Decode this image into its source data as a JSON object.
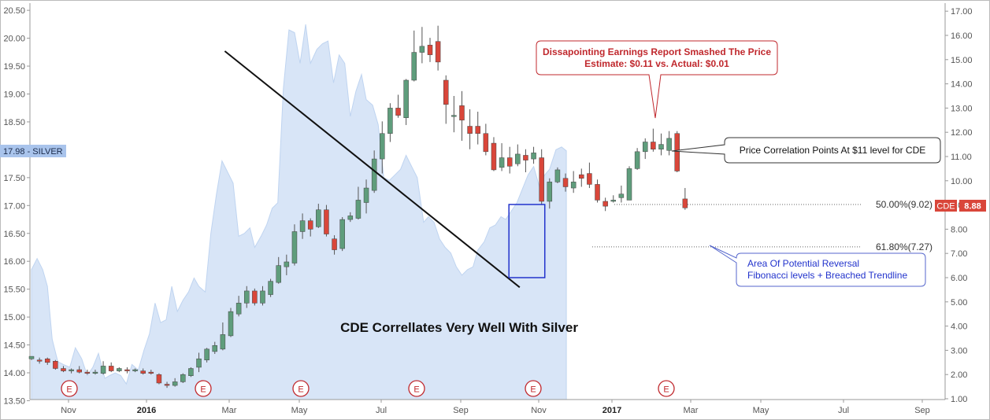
{
  "chart_data": {
    "type": "candlestick",
    "title": "CDE Correllates Very Well With Silver",
    "left_axis": {
      "label": "SILVER",
      "range": [
        13.5,
        20.5
      ],
      "ticks": [
        "13.50",
        "14.00",
        "14.50",
        "15.00",
        "15.50",
        "16.00",
        "16.50",
        "17.00",
        "17.50",
        "18.00",
        "18.50",
        "19.00",
        "19.50",
        "20.00",
        "20.50"
      ]
    },
    "right_axis": {
      "range": [
        0.7,
        17.2
      ],
      "ticks": [
        "1.00",
        "2.00",
        "3.00",
        "4.00",
        "5.00",
        "6.00",
        "7.00",
        "8.00",
        "9.00",
        "10.00",
        "11.00",
        "12.00",
        "13.00",
        "14.00",
        "15.00",
        "16.00",
        "17.00"
      ]
    },
    "x_labels": [
      "Nov",
      "2016",
      "Mar",
      "May",
      "Jul",
      "Sep",
      "Nov",
      "2017",
      "Mar",
      "May",
      "Jul",
      "Sep"
    ],
    "x_label_bold": [
      "2016",
      "2017"
    ],
    "silver_series": {
      "name": "SILVER",
      "last_value": "17.98",
      "color": "#d6e4f7",
      "t": [
        0,
        0.7,
        1.4,
        2,
        2.6,
        3.3,
        4,
        4.8,
        5.5,
        6.3,
        7,
        7.7,
        8.4,
        9.2,
        9.8,
        10.5,
        11.2,
        11.9,
        12.6,
        13.4,
        14.1,
        14.8,
        15.5,
        16.2,
        16.9,
        17.6,
        18.3,
        19,
        19.7,
        20.4,
        21,
        21.8,
        22.5,
        23.2,
        23.9,
        24.6,
        25.3,
        26,
        26.7,
        27.4,
        28,
        28.8,
        29.5,
        30.2,
        30.9,
        31.6,
        32.3,
        33,
        33.7,
        34.4,
        35,
        35.8,
        36.5,
        37.2,
        37.9,
        38.6,
        39.3,
        40,
        40.7,
        41.4,
        42,
        42.8,
        43.5,
        44.2,
        44.9,
        45.6,
        46.3,
        47,
        47.7,
        48.4,
        49.2,
        49.8,
        50.5,
        51.2,
        51.9,
        52.6,
        53.3,
        54,
        54.7,
        55.4,
        56,
        56.8,
        57.5,
        58.2,
        58.9,
        59.5,
        60.2,
        60.9,
        61.6,
        62.3,
        63,
        63.7,
        64.4,
        65,
        65.8,
        66.5,
        67.1
      ],
      "values": [
        15.85,
        16.05,
        15.85,
        15.55,
        14.6,
        14.2,
        14.15,
        14.1,
        14.45,
        14.25,
        13.95,
        14.1,
        14.35,
        13.9,
        13.95,
        14.0,
        13.95,
        13.8,
        14.15,
        14.05,
        14.4,
        14.7,
        15.25,
        14.9,
        14.95,
        15.55,
        15.1,
        15.3,
        15.45,
        15.7,
        15.55,
        15.45,
        16.5,
        17.2,
        17.8,
        17.6,
        17.4,
        16.45,
        16.5,
        16.6,
        16.25,
        16.45,
        16.65,
        16.95,
        17.05,
        19.1,
        20.15,
        20.1,
        19.55,
        20.25,
        19.55,
        19.8,
        19.9,
        19.95,
        19.2,
        19.7,
        19.55,
        18.6,
        19.05,
        19.35,
        18.9,
        18.8,
        18.45,
        17.5,
        17.45,
        17.55,
        17.65,
        17.9,
        17.7,
        17.5,
        16.7,
        16.8,
        16.7,
        16.4,
        16.25,
        16.15,
        15.9,
        15.75,
        15.85,
        15.9,
        16.2,
        16.35,
        16.6,
        16.65,
        16.8,
        16.75,
        16.9,
        17.05,
        17.3,
        17.55,
        17.7,
        17.35,
        17.55,
        17.65,
        18.0,
        18.05,
        17.98
      ]
    },
    "cde_series": {
      "name": "CDE",
      "last_value": "8.88",
      "up_color": "#5f9d7c",
      "down_color": "#d9463a",
      "candles": [
        [
          2.65,
          2.75,
          2.75,
          2.6
        ],
        [
          2.6,
          2.55,
          2.7,
          2.45
        ],
        [
          2.65,
          2.5,
          2.7,
          2.4
        ],
        [
          2.55,
          2.25,
          2.6,
          2.2
        ],
        [
          2.25,
          2.15,
          2.35,
          2.1
        ],
        [
          2.15,
          2.2,
          2.25,
          2.05
        ],
        [
          2.2,
          2.1,
          2.35,
          2.05
        ],
        [
          2.1,
          2.05,
          2.2,
          2.0
        ],
        [
          2.05,
          2.1,
          2.2,
          2.0
        ],
        [
          2.05,
          2.35,
          2.55,
          2.0
        ],
        [
          2.35,
          2.15,
          2.5,
          2.1
        ],
        [
          2.15,
          2.25,
          2.3,
          2.1
        ],
        [
          2.2,
          2.15,
          2.3,
          2.05
        ],
        [
          2.15,
          2.2,
          2.25,
          2.1
        ],
        [
          2.15,
          2.05,
          2.25,
          2.0
        ],
        [
          2.1,
          2.05,
          2.2,
          2.0
        ],
        [
          2.0,
          1.65,
          2.05,
          1.6
        ],
        [
          1.6,
          1.55,
          1.7,
          1.45
        ],
        [
          1.55,
          1.7,
          1.85,
          1.5
        ],
        [
          1.7,
          2.0,
          2.05,
          1.65
        ],
        [
          1.95,
          2.25,
          2.3,
          1.9
        ],
        [
          2.3,
          2.65,
          2.9,
          2.1
        ],
        [
          2.6,
          3.05,
          3.1,
          2.5
        ],
        [
          2.95,
          3.2,
          3.35,
          2.85
        ],
        [
          3.05,
          3.65,
          4.15,
          3.0
        ],
        [
          3.6,
          4.6,
          4.75,
          3.55
        ],
        [
          4.5,
          4.95,
          5.25,
          4.4
        ],
        [
          4.95,
          5.45,
          5.65,
          4.75
        ],
        [
          5.45,
          4.95,
          5.55,
          4.85
        ],
        [
          4.95,
          5.45,
          5.65,
          4.85
        ],
        [
          5.3,
          5.85,
          5.95,
          5.2
        ],
        [
          5.8,
          6.5,
          6.85,
          5.75
        ],
        [
          6.45,
          6.65,
          6.95,
          6.1
        ],
        [
          6.6,
          7.9,
          8.2,
          6.5
        ],
        [
          7.9,
          8.35,
          8.65,
          7.6
        ],
        [
          8.35,
          8.0,
          8.45,
          7.7
        ],
        [
          8.1,
          8.8,
          9.05,
          8.05
        ],
        [
          8.8,
          7.8,
          9.0,
          7.7
        ],
        [
          7.6,
          7.15,
          7.75,
          6.95
        ],
        [
          7.2,
          8.4,
          8.5,
          7.1
        ],
        [
          8.4,
          8.55,
          8.7,
          8.3
        ],
        [
          8.45,
          9.2,
          9.75,
          8.4
        ],
        [
          9.1,
          9.7,
          10.05,
          8.65
        ],
        [
          9.6,
          10.9,
          11.25,
          9.5
        ],
        [
          10.9,
          11.95,
          12.45,
          10.3
        ],
        [
          11.95,
          13.0,
          13.2,
          11.6
        ],
        [
          13.0,
          12.7,
          13.55,
          12.6
        ],
        [
          12.6,
          14.15,
          14.2,
          12.3
        ],
        [
          14.15,
          15.3,
          16.2,
          14.1
        ],
        [
          15.3,
          15.55,
          16.35,
          14.85
        ],
        [
          15.6,
          15.2,
          15.9,
          14.9
        ],
        [
          15.75,
          14.9,
          16.4,
          14.55
        ],
        [
          14.15,
          13.15,
          14.35,
          12.35
        ],
        [
          12.65,
          12.7,
          13.5,
          12.0
        ],
        [
          13.1,
          12.5,
          13.7,
          11.65
        ],
        [
          12.25,
          11.95,
          12.95,
          11.3
        ],
        [
          12.25,
          11.95,
          12.85,
          11.5
        ],
        [
          11.95,
          11.2,
          12.35,
          11.05
        ],
        [
          11.55,
          10.45,
          11.8,
          10.4
        ],
        [
          10.55,
          10.95,
          11.55,
          10.4
        ],
        [
          10.95,
          10.6,
          11.4,
          10.3
        ],
        [
          10.7,
          11.1,
          11.5,
          10.6
        ],
        [
          11.05,
          10.85,
          11.3,
          10.35
        ],
        [
          10.9,
          11.15,
          11.4,
          10.7
        ],
        [
          10.95,
          9.15,
          11.3,
          9.0
        ],
        [
          9.15,
          9.95,
          10.1,
          8.85
        ],
        [
          9.95,
          10.45,
          10.55,
          9.9
        ],
        [
          10.1,
          9.75,
          10.3,
          9.55
        ],
        [
          9.7,
          9.95,
          10.4,
          9.5
        ],
        [
          10.25,
          10.1,
          10.5,
          9.75
        ],
        [
          10.3,
          9.85,
          10.75,
          9.7
        ],
        [
          9.85,
          9.2,
          10.05,
          9.1
        ],
        [
          9.15,
          8.95,
          9.3,
          8.75
        ],
        [
          9.15,
          9.2,
          9.4,
          9.1
        ],
        [
          9.3,
          9.45,
          9.8,
          9.1
        ],
        [
          9.2,
          10.5,
          10.6,
          9.2
        ],
        [
          10.5,
          11.2,
          11.35,
          10.45
        ],
        [
          11.2,
          11.6,
          11.75,
          10.9
        ],
        [
          11.6,
          11.3,
          12.15,
          11.2
        ],
        [
          11.3,
          11.5,
          11.95,
          11.05
        ],
        [
          11.25,
          11.75,
          12.05,
          11.05
        ],
        [
          11.95,
          10.4,
          12.05,
          10.35
        ],
        [
          9.25,
          8.88,
          9.7,
          8.8
        ]
      ]
    },
    "earnings_marker": "E",
    "annotations": {
      "earnings_callout": {
        "line1": "Dissapointing Earnings Report Smashed The Price",
        "line2": "Estimate: $0.11 vs. Actual: $0.01"
      },
      "correlation_callout": "Price Correlation Points At $11 level for CDE",
      "reversal_callout": {
        "line1": "Area Of Potential Reversal",
        "line2": "Fibonacci levels + Breached Trendline"
      },
      "fib_levels": [
        {
          "label": "50.00%(9.02)",
          "value": 9.02
        },
        {
          "label": "61.80%(7.27)",
          "value": 7.27
        }
      ]
    },
    "trendline": {
      "from_month": 24.25,
      "from_price": 15.35,
      "to_month": 61.25,
      "to_price": 5.6
    },
    "reversal_box": {
      "t_start": 59.9,
      "t_end": 64.4,
      "price_top": 9.02,
      "price_bottom": 6.0
    },
    "colors": {
      "earnings_red": "#c0282d",
      "callout_blue": "#2233cc",
      "silver_tag": "#a9c4ec",
      "cde_tag": "#d9463a",
      "axis_text": "#555555"
    }
  }
}
